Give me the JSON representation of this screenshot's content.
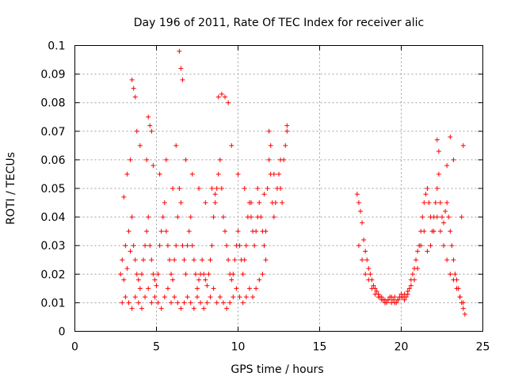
{
  "chart_data": {
    "type": "scatter",
    "title": "Day 196 of 2011, Rate Of TEC Index for receiver alic",
    "xlabel": "GPS time / hours",
    "ylabel": "ROTI / TECUs",
    "xlim": [
      0,
      25
    ],
    "ylim": [
      0,
      0.1
    ],
    "xticks": [
      0,
      5,
      10,
      15,
      20,
      25
    ],
    "yticks": [
      0,
      0.01,
      0.02,
      0.03,
      0.04,
      0.05,
      0.06,
      0.07,
      0.08,
      0.09,
      0.1
    ],
    "xtick_labels": [
      "0",
      "5",
      "10",
      "15",
      "20",
      "25"
    ],
    "ytick_labels": [
      "0",
      "0.01",
      "0.02",
      "0.03",
      "0.04",
      "0.05",
      "0.06",
      "0.07",
      "0.08",
      "0.09",
      "0.1"
    ],
    "grid": true,
    "marker": "plus",
    "color": "#ff0000",
    "series": [
      {
        "x": [
          2.8,
          2.9,
          3.0,
          3.1,
          3.2,
          3.3,
          3.4,
          3.5,
          3.6,
          3.7,
          3.8,
          3.9,
          4.0,
          4.1,
          4.2,
          4.3,
          4.4,
          4.5,
          4.6,
          4.7,
          4.8,
          4.9,
          5.0,
          5.1,
          5.2,
          5.3,
          5.4,
          5.5,
          5.6,
          5.7,
          5.8,
          5.9,
          6.0,
          6.1,
          6.2,
          6.3,
          6.4,
          6.5,
          6.6,
          6.7,
          6.8,
          6.9,
          7.0,
          7.1,
          7.2,
          7.3,
          7.4,
          7.5,
          7.6,
          7.7,
          7.8,
          7.9,
          8.0,
          8.1,
          8.2,
          8.3,
          8.4,
          8.5,
          8.6,
          8.7,
          8.8,
          8.9,
          9.0,
          9.1,
          9.2,
          9.3,
          9.4,
          9.5,
          9.6,
          9.7,
          9.8,
          9.9,
          10.0,
          10.1,
          10.2,
          10.3,
          10.4,
          10.5,
          10.6,
          10.7,
          10.8,
          10.9,
          11.0,
          11.1,
          11.2,
          11.3,
          11.4,
          11.5,
          11.6,
          11.7,
          11.8,
          11.9,
          12.0,
          12.1,
          12.2,
          12.3,
          12.4,
          12.5,
          12.6,
          12.7,
          12.8,
          12.9,
          13.0,
          2.9,
          3.1,
          3.3,
          3.5,
          3.7,
          3.9,
          4.1,
          4.3,
          4.5,
          4.7,
          4.9,
          5.1,
          5.3,
          5.5,
          5.7,
          5.9,
          6.1,
          6.3,
          6.5,
          6.7,
          6.9,
          7.1,
          7.3,
          7.5,
          7.7,
          7.9,
          8.1,
          8.3,
          8.5,
          8.7,
          8.9,
          9.1,
          9.3,
          9.5,
          9.7,
          9.9,
          10.1,
          10.3,
          10.5,
          10.7,
          10.9,
          11.1,
          11.3,
          11.5,
          11.7,
          3.5,
          3.6,
          3.7,
          4.5,
          4.6,
          4.7,
          6.4,
          6.5,
          6.6,
          8.8,
          9.0,
          9.2,
          9.4,
          11.9,
          12.0,
          13.0,
          3.0,
          3.2,
          3.4,
          3.8,
          4.0,
          4.4,
          4.8,
          5.2,
          5.6,
          6.0,
          6.2,
          6.8,
          7.2,
          7.6,
          8.0,
          8.4,
          8.6,
          9.6,
          10.0,
          10.4,
          10.8,
          11.2,
          11.6,
          12.2,
          12.6,
          17.3,
          17.4,
          17.5,
          17.6,
          17.7,
          17.8,
          17.9,
          18.0,
          18.1,
          18.2,
          18.3,
          18.4,
          18.5,
          18.6,
          18.7,
          18.8,
          18.9,
          19.0,
          19.1,
          19.2,
          19.3,
          19.4,
          19.5,
          19.6,
          19.7,
          19.8,
          19.9,
          20.0,
          20.1,
          20.2,
          20.3,
          20.4,
          20.5,
          20.6,
          20.7,
          20.8,
          20.9,
          21.0,
          21.1,
          21.2,
          21.3,
          21.4,
          21.5,
          21.6,
          21.7,
          21.8,
          21.9,
          22.0,
          22.1,
          22.2,
          22.3,
          22.4,
          22.5,
          22.6,
          22.7,
          22.8,
          22.9,
          23.0,
          23.1,
          23.2,
          23.3,
          23.4,
          23.5,
          23.6,
          23.7,
          23.8,
          23.9,
          17.4,
          17.6,
          17.8,
          18.0,
          18.2,
          18.4,
          18.6,
          18.8,
          19.0,
          19.2,
          19.4,
          19.6,
          19.8,
          20.0,
          20.2,
          20.4,
          20.6,
          20.8,
          21.0,
          21.2,
          21.4,
          21.6,
          21.8,
          22.0,
          22.2,
          22.4,
          22.6,
          22.8,
          23.0,
          23.2,
          23.4,
          23.6,
          23.8,
          22.2,
          22.3,
          22.8,
          23.0,
          23.2,
          23.7,
          23.8
        ],
        "y": [
          0.02,
          0.025,
          0.018,
          0.03,
          0.022,
          0.035,
          0.028,
          0.04,
          0.03,
          0.025,
          0.02,
          0.018,
          0.015,
          0.02,
          0.025,
          0.03,
          0.035,
          0.04,
          0.03,
          0.025,
          0.02,
          0.018,
          0.016,
          0.02,
          0.03,
          0.035,
          0.04,
          0.045,
          0.035,
          0.03,
          0.025,
          0.02,
          0.018,
          0.025,
          0.03,
          0.04,
          0.05,
          0.045,
          0.03,
          0.025,
          0.02,
          0.03,
          0.035,
          0.04,
          0.03,
          0.025,
          0.02,
          0.015,
          0.018,
          0.02,
          0.025,
          0.02,
          0.018,
          0.016,
          0.02,
          0.025,
          0.03,
          0.04,
          0.045,
          0.05,
          0.055,
          0.06,
          0.05,
          0.04,
          0.035,
          0.03,
          0.025,
          0.02,
          0.018,
          0.02,
          0.025,
          0.03,
          0.035,
          0.03,
          0.025,
          0.02,
          0.025,
          0.03,
          0.04,
          0.045,
          0.04,
          0.035,
          0.03,
          0.035,
          0.04,
          0.045,
          0.04,
          0.035,
          0.03,
          0.035,
          0.05,
          0.06,
          0.055,
          0.045,
          0.04,
          0.045,
          0.05,
          0.055,
          0.05,
          0.045,
          0.06,
          0.065,
          0.07,
          0.01,
          0.012,
          0.01,
          0.008,
          0.012,
          0.01,
          0.008,
          0.012,
          0.015,
          0.01,
          0.012,
          0.01,
          0.008,
          0.012,
          0.015,
          0.01,
          0.012,
          0.01,
          0.008,
          0.01,
          0.012,
          0.01,
          0.008,
          0.012,
          0.01,
          0.008,
          0.01,
          0.012,
          0.015,
          0.01,
          0.012,
          0.01,
          0.008,
          0.01,
          0.012,
          0.015,
          0.012,
          0.01,
          0.012,
          0.015,
          0.012,
          0.015,
          0.018,
          0.02,
          0.025,
          0.088,
          0.085,
          0.082,
          0.075,
          0.072,
          0.07,
          0.098,
          0.092,
          0.088,
          0.082,
          0.083,
          0.082,
          0.08,
          0.07,
          0.065,
          0.072,
          0.047,
          0.055,
          0.06,
          0.07,
          0.065,
          0.06,
          0.058,
          0.055,
          0.06,
          0.05,
          0.065,
          0.06,
          0.055,
          0.05,
          0.045,
          0.05,
          0.048,
          0.065,
          0.055,
          0.05,
          0.045,
          0.05,
          0.048,
          0.055,
          0.06,
          0.048,
          0.045,
          0.042,
          0.038,
          0.032,
          0.028,
          0.025,
          0.022,
          0.02,
          0.018,
          0.016,
          0.015,
          0.014,
          0.013,
          0.012,
          0.012,
          0.011,
          0.011,
          0.01,
          0.011,
          0.012,
          0.01,
          0.011,
          0.012,
          0.01,
          0.011,
          0.012,
          0.013,
          0.012,
          0.011,
          0.012,
          0.013,
          0.015,
          0.018,
          0.02,
          0.022,
          0.025,
          0.028,
          0.03,
          0.035,
          0.04,
          0.045,
          0.048,
          0.05,
          0.045,
          0.04,
          0.035,
          0.04,
          0.045,
          0.05,
          0.055,
          0.045,
          0.04,
          0.038,
          0.042,
          0.045,
          0.04,
          0.035,
          0.03,
          0.025,
          0.02,
          0.018,
          0.015,
          0.012,
          0.01,
          0.008,
          0.006,
          0.03,
          0.025,
          0.02,
          0.018,
          0.015,
          0.013,
          0.012,
          0.011,
          0.01,
          0.011,
          0.012,
          0.01,
          0.011,
          0.012,
          0.013,
          0.014,
          0.016,
          0.018,
          0.022,
          0.03,
          0.035,
          0.028,
          0.03,
          0.035,
          0.04,
          0.035,
          0.03,
          0.025,
          0.02,
          0.018,
          0.015,
          0.012,
          0.01,
          0.067,
          0.063,
          0.058,
          0.068,
          0.06,
          0.04,
          0.065
        ]
      }
    ]
  }
}
